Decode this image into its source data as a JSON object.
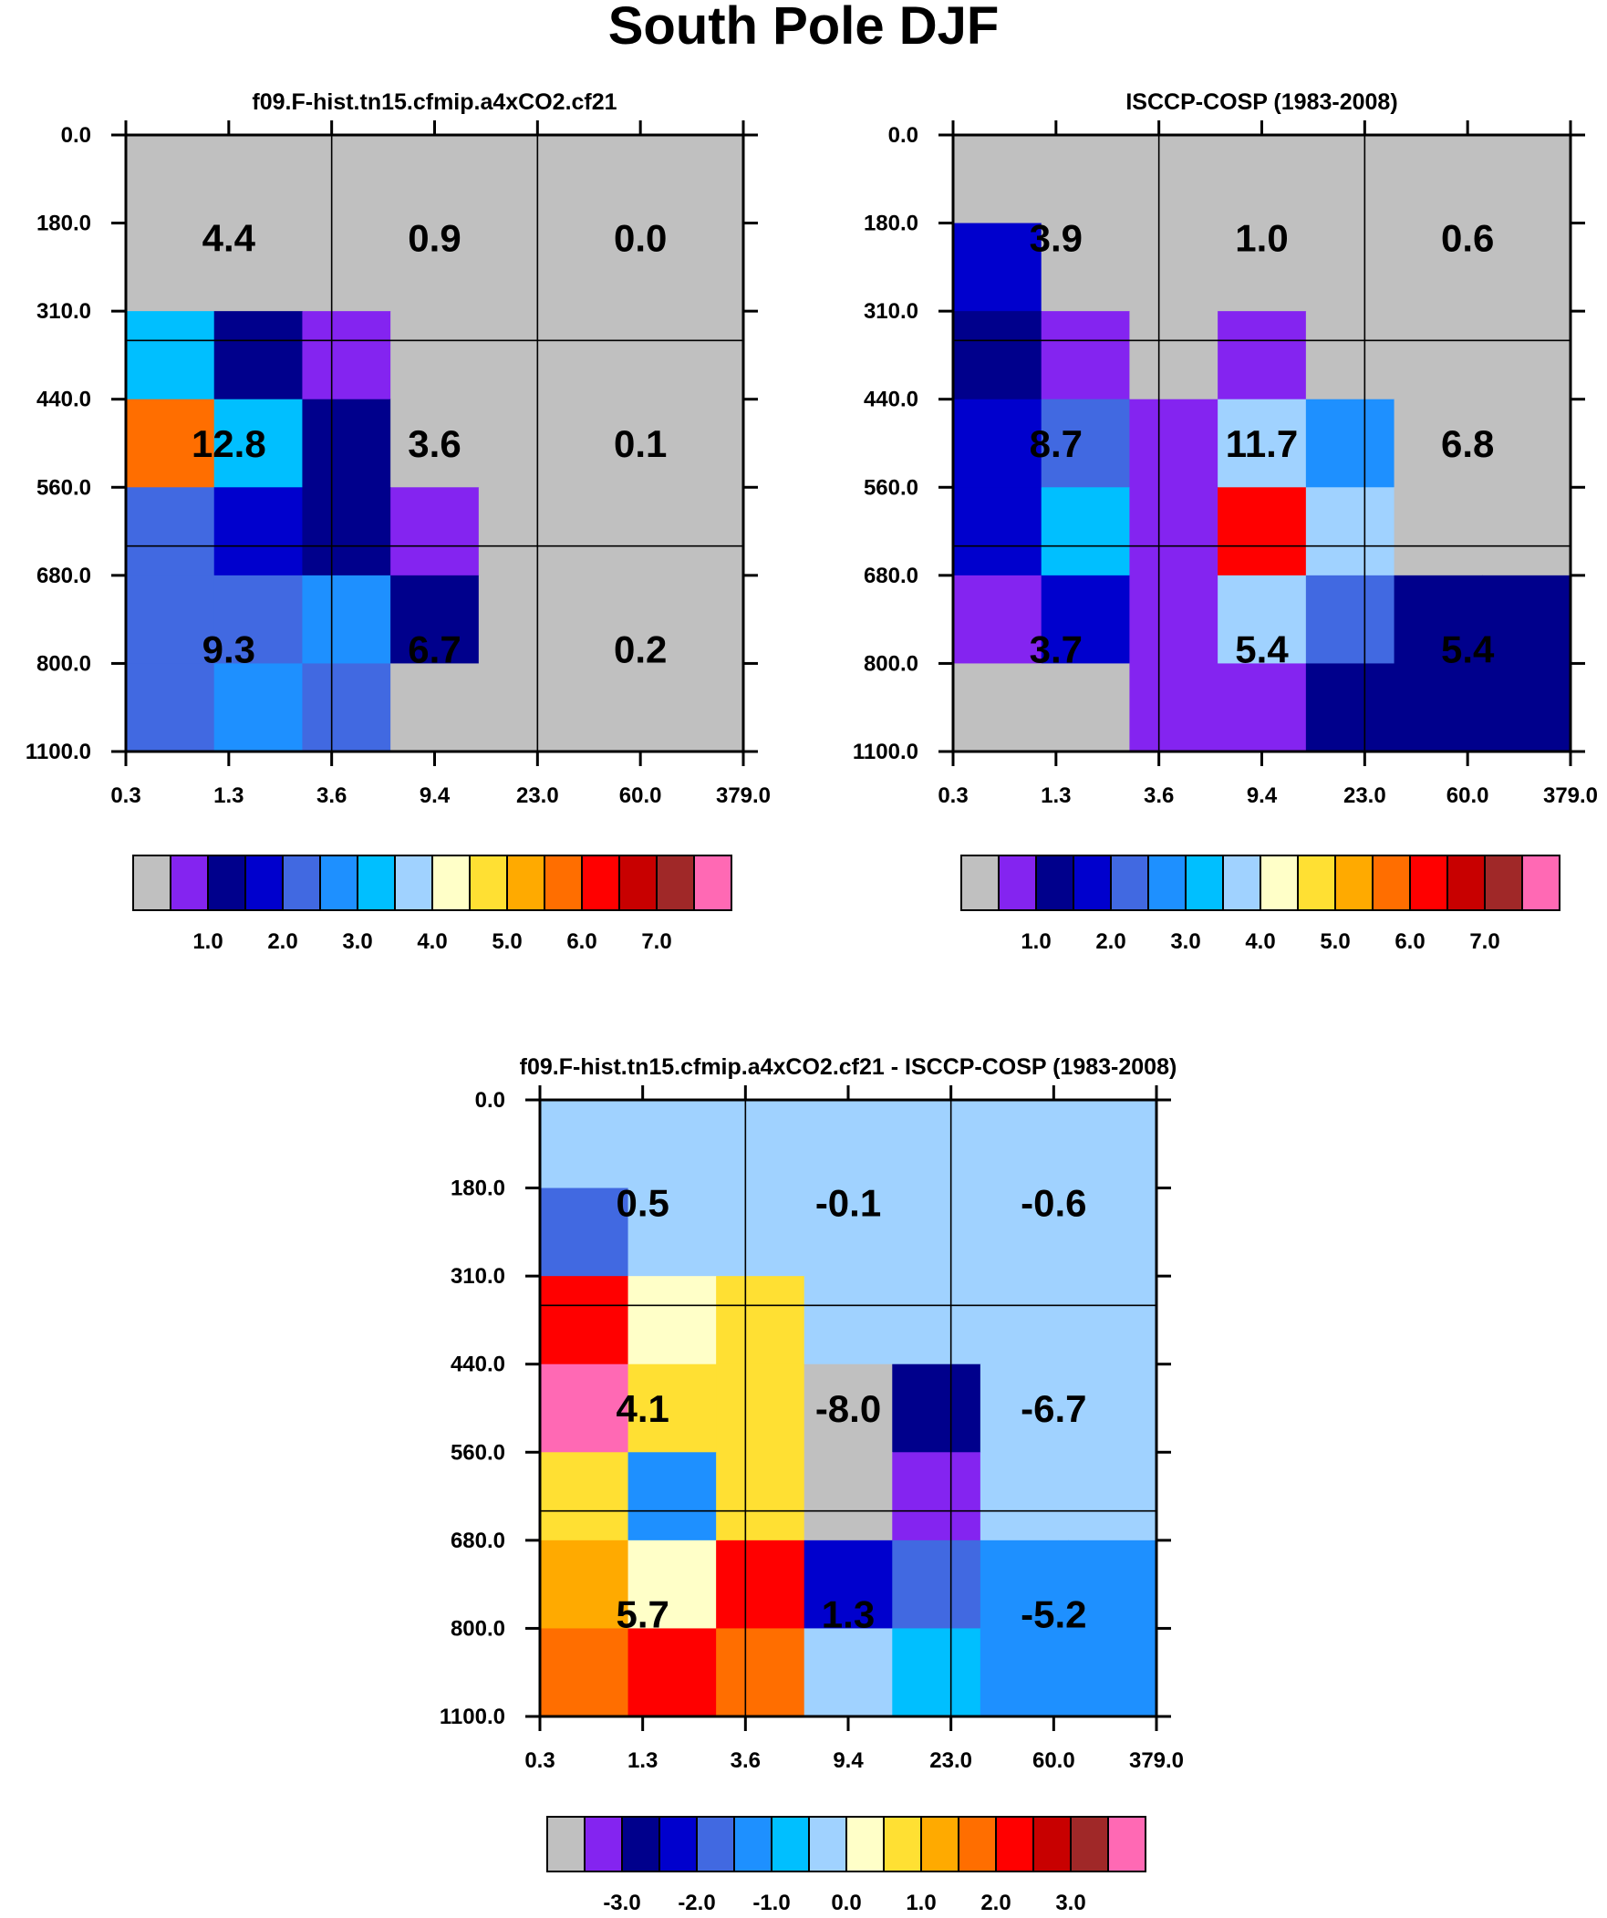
{
  "title": "South Pole DJF",
  "colors": {
    "palette": [
      "#c0c0c0",
      "#8424f0",
      "#00008c",
      "#0000cd",
      "#4169e1",
      "#1e90ff",
      "#00bfff",
      "#a0d2ff",
      "#ffffc8",
      "#ffe033",
      "#ffaa00",
      "#ff6e00",
      "#ff0000",
      "#c80000",
      "#a02828",
      "#ff69b4"
    ],
    "grid_line": "#000000",
    "background": "#ffffff"
  },
  "chart_data": [
    {
      "type": "heatmap",
      "title": "f09.F-hist.tn15.cfmip.a4xCO2.cf21",
      "xlabel": "",
      "ylabel": "",
      "x_tick_labels": [
        "0.3",
        "1.3",
        "3.6",
        "9.4",
        "23.0",
        "60.0",
        "379.0"
      ],
      "y_tick_labels": [
        "0.0",
        "180.0",
        "310.0",
        "440.0",
        "560.0",
        "680.0",
        "800.0",
        "1100.0"
      ],
      "cell_color_index": [
        [
          0,
          0,
          0,
          0,
          0,
          0,
          0
        ],
        [
          0,
          0,
          0,
          0,
          0,
          0,
          0
        ],
        [
          6,
          2,
          1,
          0,
          0,
          0,
          0
        ],
        [
          11,
          6,
          2,
          0,
          0,
          0,
          0
        ],
        [
          4,
          3,
          2,
          1,
          0,
          0,
          0
        ],
        [
          4,
          4,
          5,
          2,
          0,
          0,
          0
        ],
        [
          4,
          5,
          4,
          0,
          0,
          0,
          0
        ]
      ],
      "block_values": [
        [
          "4.4",
          "0.9",
          "0.0"
        ],
        [
          "12.8",
          "3.6",
          "0.1"
        ],
        [
          "9.3",
          "6.7",
          "0.2"
        ]
      ],
      "colorbar": {
        "colors_index": [
          0,
          1,
          2,
          3,
          4,
          5,
          6,
          7,
          8,
          9,
          10,
          11,
          12,
          13,
          14,
          15
        ],
        "labels": [
          "1.0",
          "2.0",
          "3.0",
          "4.0",
          "5.0",
          "6.0",
          "7.0"
        ],
        "label_positions": [
          2,
          4,
          6,
          8,
          10,
          12,
          14
        ]
      }
    },
    {
      "type": "heatmap",
      "title": "ISCCP-COSP (1983-2008)",
      "xlabel": "",
      "ylabel": "",
      "x_tick_labels": [
        "0.3",
        "1.3",
        "3.6",
        "9.4",
        "23.0",
        "60.0",
        "379.0"
      ],
      "y_tick_labels": [
        "0.0",
        "180.0",
        "310.0",
        "440.0",
        "560.0",
        "680.0",
        "800.0",
        "1100.0"
      ],
      "cell_color_index": [
        [
          0,
          0,
          0,
          0,
          0,
          0,
          0
        ],
        [
          3,
          0,
          0,
          0,
          0,
          0,
          0
        ],
        [
          2,
          1,
          0,
          1,
          0,
          0,
          0
        ],
        [
          3,
          4,
          1,
          7,
          5,
          0,
          0
        ],
        [
          3,
          6,
          1,
          12,
          7,
          0,
          0
        ],
        [
          1,
          3,
          1,
          7,
          4,
          2,
          2
        ],
        [
          0,
          0,
          1,
          1,
          2,
          2,
          2
        ]
      ],
      "block_values": [
        [
          "3.9",
          "1.0",
          "0.6"
        ],
        [
          "8.7",
          "11.7",
          "6.8"
        ],
        [
          "3.7",
          "5.4",
          "5.4"
        ]
      ],
      "colorbar": {
        "colors_index": [
          0,
          1,
          2,
          3,
          4,
          5,
          6,
          7,
          8,
          9,
          10,
          11,
          12,
          13,
          14,
          15
        ],
        "labels": [
          "1.0",
          "2.0",
          "3.0",
          "4.0",
          "5.0",
          "6.0",
          "7.0"
        ],
        "label_positions": [
          2,
          4,
          6,
          8,
          10,
          12,
          14
        ]
      }
    },
    {
      "type": "heatmap",
      "title": "f09.F-hist.tn15.cfmip.a4xCO2.cf21 - ISCCP-COSP (1983-2008)",
      "xlabel": "",
      "ylabel": "",
      "x_tick_labels": [
        "0.3",
        "1.3",
        "3.6",
        "9.4",
        "23.0",
        "60.0",
        "379.0"
      ],
      "y_tick_labels": [
        "0.0",
        "180.0",
        "310.0",
        "440.0",
        "560.0",
        "680.0",
        "800.0",
        "1100.0"
      ],
      "cell_color_index": [
        [
          7,
          7,
          7,
          7,
          7,
          7,
          7
        ],
        [
          4,
          7,
          7,
          7,
          7,
          7,
          7
        ],
        [
          12,
          8,
          9,
          7,
          7,
          7,
          7
        ],
        [
          15,
          9,
          9,
          0,
          2,
          7,
          7
        ],
        [
          9,
          5,
          9,
          0,
          1,
          7,
          7
        ],
        [
          10,
          8,
          12,
          3,
          4,
          5,
          5
        ],
        [
          11,
          12,
          11,
          7,
          6,
          5,
          5
        ]
      ],
      "block_values": [
        [
          "0.5",
          "-0.1",
          "-0.6"
        ],
        [
          "4.1",
          "-8.0",
          "-6.7"
        ],
        [
          "5.7",
          "1.3",
          "-5.2"
        ]
      ],
      "colorbar": {
        "colors_index": [
          0,
          1,
          2,
          3,
          4,
          5,
          6,
          7,
          8,
          9,
          10,
          11,
          12,
          13,
          14,
          15
        ],
        "labels": [
          "-3.0",
          "-2.0",
          "-1.0",
          "0.0",
          "1.0",
          "2.0",
          "3.0"
        ],
        "label_positions": [
          2,
          4,
          6,
          8,
          10,
          12,
          14
        ]
      }
    }
  ]
}
